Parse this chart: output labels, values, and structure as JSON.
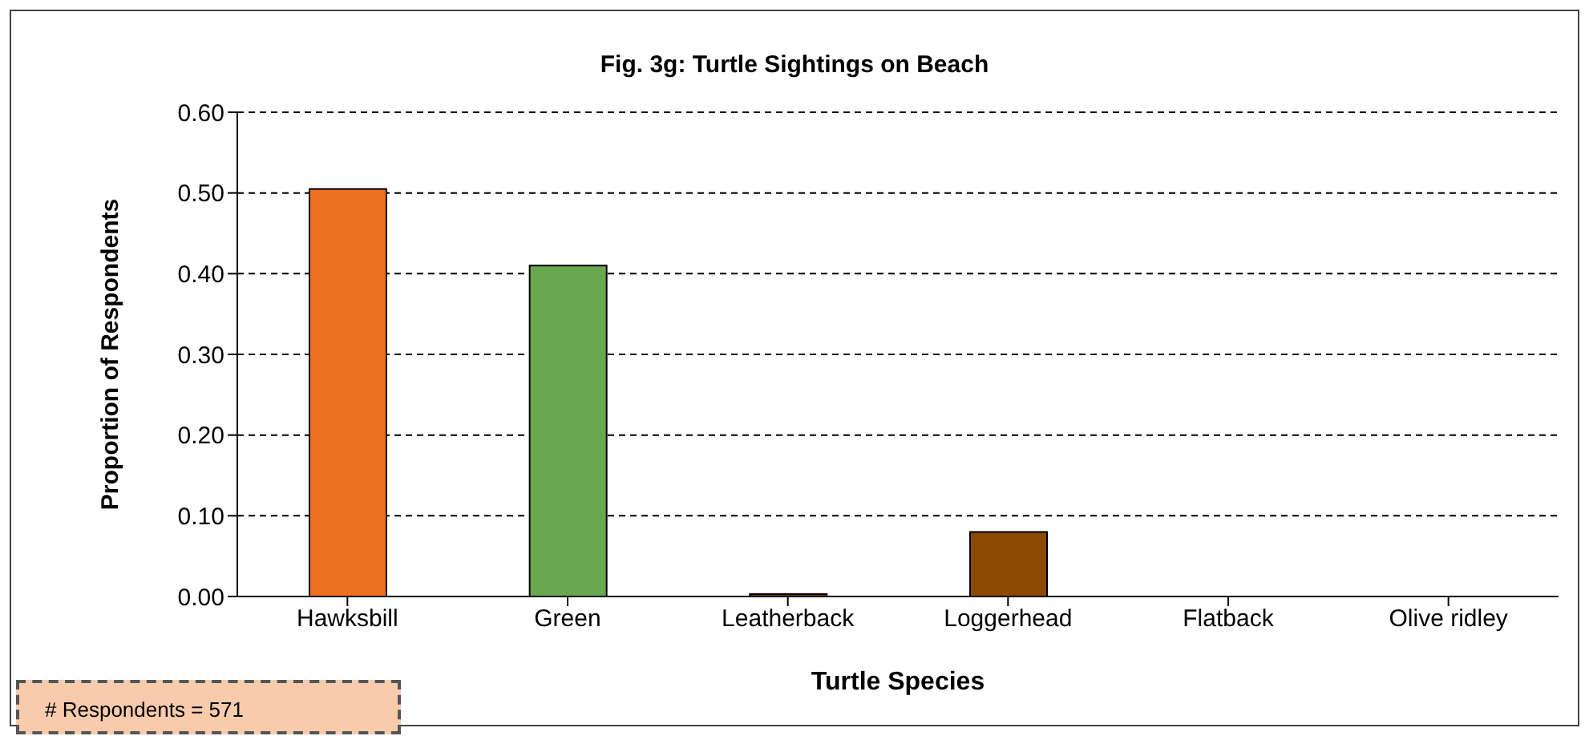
{
  "chart_data": {
    "type": "bar",
    "title": "Fig. 3g: Turtle Sightings  on Beach",
    "xlabel": "Turtle Species",
    "ylabel": "Proportion of Respondents",
    "categories": [
      "Hawksbill",
      "Green",
      "Leatherback",
      "Loggerhead",
      "Flatback",
      "Olive ridley"
    ],
    "values": [
      0.505,
      0.41,
      0.003,
      0.08,
      0,
      0
    ],
    "colors": [
      "#ed7120",
      "#6aa84f",
      "#7f3f00",
      "#8b4a00",
      "#8b4a00",
      "#8b4a00"
    ],
    "ylim": [
      0,
      0.6
    ],
    "yticks": [
      {
        "value": 0,
        "label": "0.00"
      },
      {
        "value": 0.1,
        "label": "0.10"
      },
      {
        "value": 0.2,
        "label": "0.20"
      },
      {
        "value": 0.3,
        "label": "0.30"
      },
      {
        "value": 0.4,
        "label": "0.40"
      },
      {
        "value": 0.5,
        "label": "0.50"
      },
      {
        "value": 0.6,
        "label": "0.60"
      }
    ],
    "grid": "y",
    "legend": false,
    "annotations": [
      "# Respondents = 571"
    ]
  }
}
